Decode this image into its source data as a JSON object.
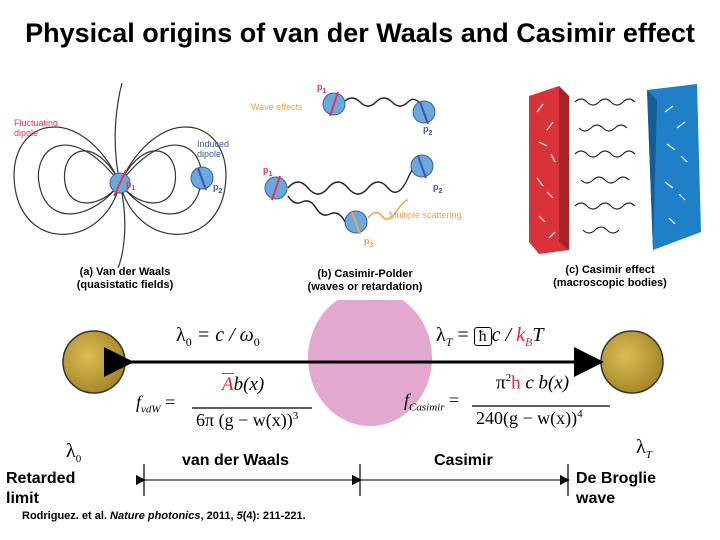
{
  "title": "Physical origins of van der Waals and Casimir effect",
  "panel_a": {
    "caption_line1": "(a) Van der Waals",
    "caption_line2": "(quasistatic fields)",
    "fluctuating_label_line1": "Fluctuating",
    "fluctuating_label_line2": "dipole",
    "induced_label_line1": "Induced",
    "induced_label_line2": "dipole",
    "p1": "p",
    "p1_sub": "1",
    "p2": "p",
    "p2_sub": "2"
  },
  "panel_b": {
    "caption_line1": "(b) Casimir-Polder",
    "caption_line2": "(waves or retardation)",
    "wave_effects": "Wave effects",
    "multiple_scattering": "Multiple scattering",
    "p1": "p",
    "p1_sub": "1",
    "p2": "p",
    "p2_sub": "2",
    "p3": "p",
    "p3_sub": "3"
  },
  "panel_c": {
    "caption_line1": "(c) Casimir effect",
    "caption_line2": "(macroscopic bodies)"
  },
  "equations": {
    "lambda0_eq": {
      "lhs": "λ",
      "lhs_sub": "0",
      "rhs": "= c / ω",
      "rhs_sub": "0"
    },
    "lambdaT_eq": {
      "lhs": "λ",
      "lhs_sub": "T",
      "eq": "=",
      "ħ": "ħ",
      "c": "c /",
      "kb": "k",
      "kb_sub": "B",
      "T": "T"
    },
    "fvdw": {
      "lhs": "f",
      "lhs_sub": "vdW",
      "eq": "=",
      "num_bar": "A",
      "num_rest": "b(x)",
      "den": "6π (g − w(x))",
      "den_exp": "3"
    },
    "fcas": {
      "lhs": "f",
      "lhs_sub": "Casimir",
      "eq": "=",
      "num": "π",
      "num_exp": "2",
      "h": "h",
      "num_rest": "c b(x)",
      "den": "240(g − w(x))",
      "den_exp": "4"
    }
  },
  "scale": {
    "lambda0": "λ",
    "lambda0_sub": "0",
    "lambdaT": "λ",
    "lambdaT_sub": "T",
    "retarded_line1": "Retarded",
    "retarded_line2": "limit",
    "vdw": "van der Waals",
    "casimir": "Casimir",
    "debroglie_line1": "De Broglie",
    "debroglie_line2": "wave"
  },
  "reference": {
    "authors": "Rodriguez. et al. ",
    "journal": "Nature photonics",
    "details": ", 2011, ",
    "volume": "5",
    "rest": "(4): 211-221."
  },
  "colors": {
    "fluct": "#e8335a",
    "induced": "#3f5aa8",
    "orange": "#f3a24a",
    "sphere": "#c7a53a",
    "ellipse": "#e3a8cf",
    "red_plate": "#d9323a",
    "blue_plate": "#1f7fc7",
    "kb_red": "#e3252e"
  }
}
